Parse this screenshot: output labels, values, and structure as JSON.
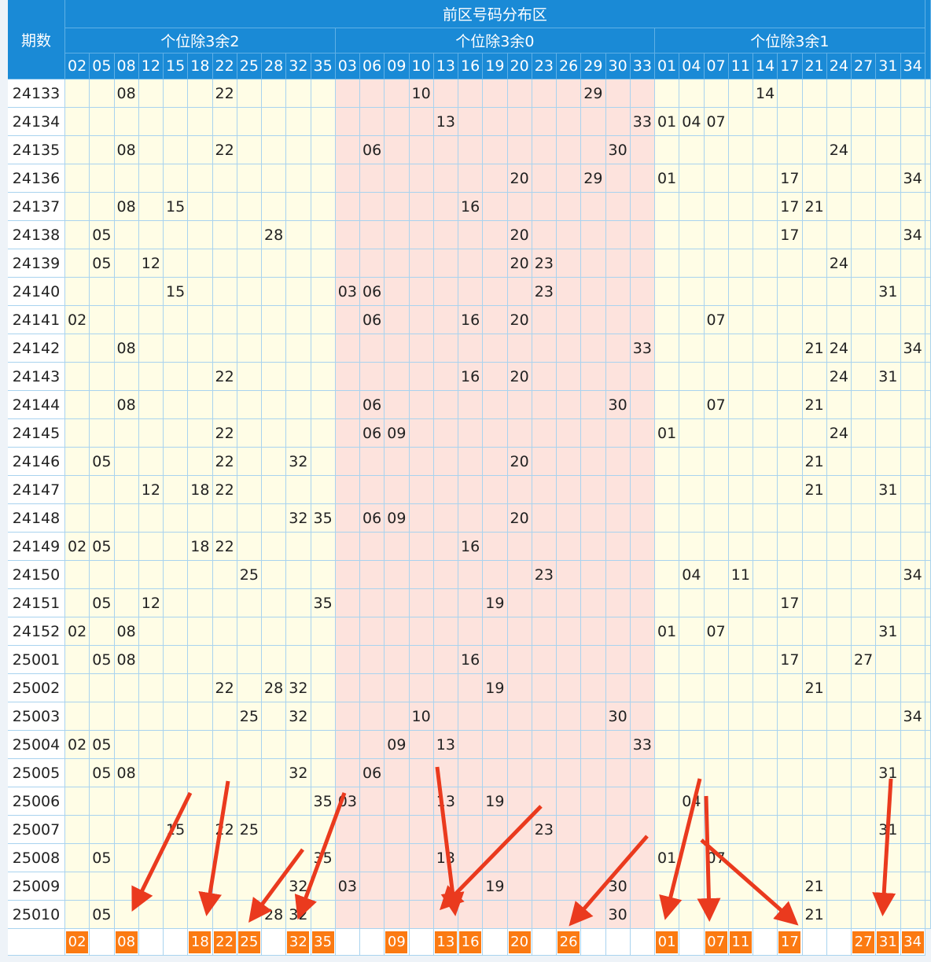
{
  "header": {
    "title": "前区号码分布区",
    "period_label": "期数"
  },
  "groups": [
    {
      "name": "个位除3余2",
      "numbers": [
        "02",
        "05",
        "08",
        "12",
        "15",
        "18",
        "22",
        "25",
        "28",
        "32",
        "35"
      ]
    },
    {
      "name": "个位除3余0",
      "numbers": [
        "03",
        "06",
        "09",
        "10",
        "13",
        "16",
        "19",
        "20",
        "23",
        "26",
        "29",
        "30",
        "33"
      ]
    },
    {
      "name": "个位除3余1",
      "numbers": [
        "01",
        "04",
        "07",
        "11",
        "14",
        "17",
        "21",
        "24",
        "27",
        "31",
        "34"
      ]
    }
  ],
  "rows": [
    {
      "period": "24133",
      "numbers": [
        "08",
        "22",
        "10",
        "29",
        "14"
      ]
    },
    {
      "period": "24134",
      "numbers": [
        "13",
        "33",
        "01",
        "04",
        "07"
      ]
    },
    {
      "period": "24135",
      "numbers": [
        "08",
        "22",
        "06",
        "30",
        "24"
      ]
    },
    {
      "period": "24136",
      "numbers": [
        "20",
        "29",
        "01",
        "17",
        "34"
      ]
    },
    {
      "period": "24137",
      "numbers": [
        "08",
        "15",
        "16",
        "17",
        "21"
      ]
    },
    {
      "period": "24138",
      "numbers": [
        "05",
        "28",
        "20",
        "17",
        "34"
      ]
    },
    {
      "period": "24139",
      "numbers": [
        "05",
        "12",
        "20",
        "23",
        "24"
      ]
    },
    {
      "period": "24140",
      "numbers": [
        "15",
        "03",
        "06",
        "23",
        "31"
      ]
    },
    {
      "period": "24141",
      "numbers": [
        "02",
        "06",
        "16",
        "20",
        "07"
      ]
    },
    {
      "period": "24142",
      "numbers": [
        "08",
        "33",
        "21",
        "24",
        "34"
      ]
    },
    {
      "period": "24143",
      "numbers": [
        "22",
        "16",
        "20",
        "24",
        "31"
      ]
    },
    {
      "period": "24144",
      "numbers": [
        "08",
        "06",
        "30",
        "07",
        "21"
      ]
    },
    {
      "period": "24145",
      "numbers": [
        "22",
        "06",
        "09",
        "01",
        "24"
      ]
    },
    {
      "period": "24146",
      "numbers": [
        "05",
        "22",
        "32",
        "20",
        "21"
      ]
    },
    {
      "period": "24147",
      "numbers": [
        "12",
        "18",
        "22",
        "21",
        "31"
      ]
    },
    {
      "period": "24148",
      "numbers": [
        "32",
        "35",
        "06",
        "09",
        "20"
      ]
    },
    {
      "period": "24149",
      "numbers": [
        "02",
        "05",
        "18",
        "22",
        "16"
      ]
    },
    {
      "period": "24150",
      "numbers": [
        "25",
        "23",
        "04",
        "11",
        "34"
      ]
    },
    {
      "period": "24151",
      "numbers": [
        "05",
        "12",
        "35",
        "19",
        "17"
      ]
    },
    {
      "period": "24152",
      "numbers": [
        "02",
        "08",
        "01",
        "07",
        "31"
      ]
    },
    {
      "period": "25001",
      "numbers": [
        "05",
        "08",
        "16",
        "17",
        "27"
      ]
    },
    {
      "period": "25002",
      "numbers": [
        "22",
        "28",
        "32",
        "19",
        "21"
      ]
    },
    {
      "period": "25003",
      "numbers": [
        "25",
        "32",
        "10",
        "30",
        "34"
      ]
    },
    {
      "period": "25004",
      "numbers": [
        "02",
        "05",
        "09",
        "13",
        "33"
      ]
    },
    {
      "period": "25005",
      "numbers": [
        "05",
        "08",
        "32",
        "06",
        "31"
      ]
    },
    {
      "period": "25006",
      "numbers": [
        "35",
        "03",
        "13",
        "19",
        "04"
      ]
    },
    {
      "period": "25007",
      "numbers": [
        "15",
        "22",
        "25",
        "23",
        "31"
      ]
    },
    {
      "period": "25008",
      "numbers": [
        "05",
        "35",
        "13",
        "01",
        "07"
      ]
    },
    {
      "period": "25009",
      "numbers": [
        "32",
        "03",
        "19",
        "30",
        "21"
      ]
    },
    {
      "period": "25010",
      "numbers": [
        "05",
        "28",
        "32",
        "30",
        "21"
      ]
    }
  ],
  "highlight": [
    "02",
    "08",
    "18",
    "22",
    "25",
    "32",
    "35",
    "09",
    "13",
    "16",
    "20",
    "26",
    "01",
    "07",
    "11",
    "17",
    "27",
    "31",
    "34"
  ]
}
